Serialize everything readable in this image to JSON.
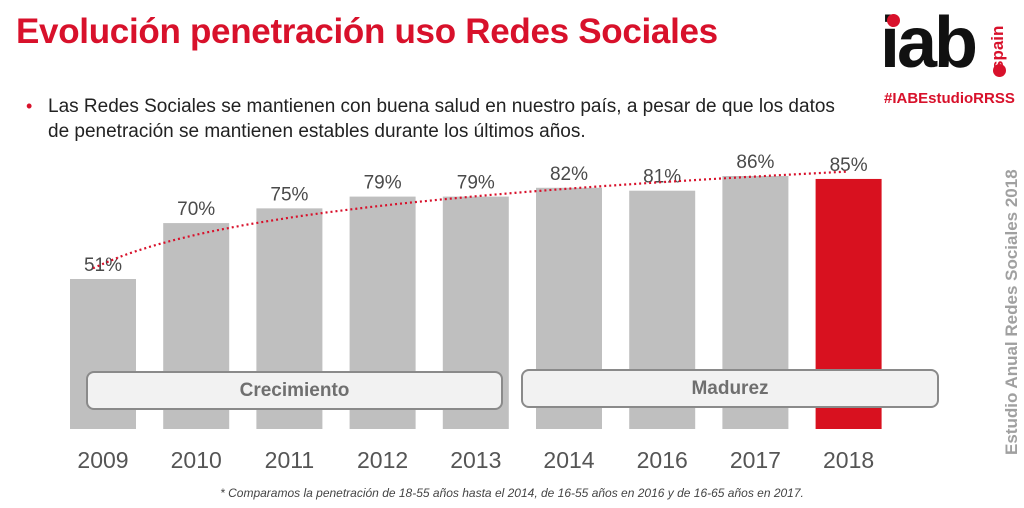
{
  "header": {
    "title": "Evolución penetración uso Redes Sociales",
    "bullet_marker": "•",
    "bullet_text": "Las Redes Sociales se mantienen con buena salud en nuestro país, a pesar de que los datos de penetración se mantienen estables durante los últimos años."
  },
  "brand": {
    "logo_text": "iab",
    "logo_sub": "spain",
    "hashtag": "#IABEstudioRRSS",
    "side_label": "Estudio Anual Redes Sociales 2018",
    "accent_color": "#d8112b"
  },
  "phases": [
    {
      "label": "Crecimiento",
      "from": "2009",
      "to": "2013"
    },
    {
      "label": "Madurez",
      "from": "2014",
      "to": "2018"
    }
  ],
  "footnote": "* Comparamos la penetración de 18-55 años hasta el 2014, de 16-55 años en 2016 y de 16-65 años en 2017.",
  "chart_data": {
    "type": "bar",
    "title": "Evolución penetración uso Redes Sociales",
    "xlabel": "",
    "ylabel": "",
    "categories": [
      "2009",
      "2010",
      "2011",
      "2012",
      "2013",
      "2014",
      "2016",
      "2017",
      "2018"
    ],
    "values": [
      51,
      70,
      75,
      79,
      79,
      82,
      81,
      86,
      85
    ],
    "value_labels": [
      "51%",
      "70%",
      "75%",
      "79%",
      "79%",
      "82%",
      "81%",
      "86%",
      "85%"
    ],
    "unit": "%",
    "ylim": [
      0,
      100
    ],
    "grid": false,
    "highlight_category": "2018",
    "bar_color": "#bfbfbf",
    "highlight_color": "#d8111f",
    "trendline": {
      "type": "logarithmic",
      "style": "dotted",
      "color": "#d8112b"
    }
  }
}
